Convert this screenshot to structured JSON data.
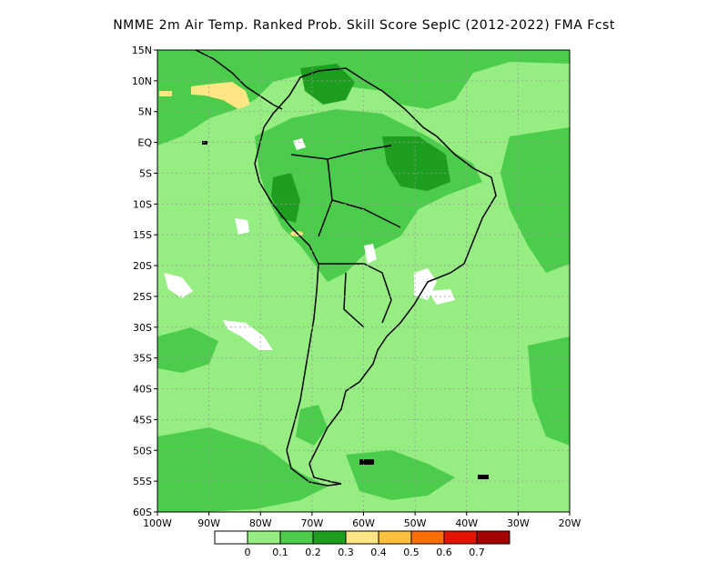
{
  "title": "NMME  2m Air Temp. Ranked Prob. Skill Score SepIC (2012-2022) FMA Fcst",
  "lat_labels": [
    "15N",
    "10N",
    "5N",
    "EQ",
    "5S",
    "10S",
    "15S",
    "20S",
    "25S",
    "30S",
    "35S",
    "40S",
    "45S",
    "50S",
    "55S",
    "60S"
  ],
  "lon_labels": [
    "100W",
    "90W",
    "80W",
    "70W",
    "60W",
    "50W",
    "40W",
    "30W",
    "20W"
  ],
  "colorbar": {
    "colors": [
      "#ffffff",
      "#96ee82",
      "#4bcd4b",
      "#1e9e1e",
      "#ffe682",
      "#ffc03c",
      "#ff6e00",
      "#e11400",
      "#a50000"
    ],
    "labels": [
      "0",
      "0.1",
      "0.2",
      "0.3",
      "0.4",
      "0.5",
      "0.6",
      "0.7"
    ]
  }
}
